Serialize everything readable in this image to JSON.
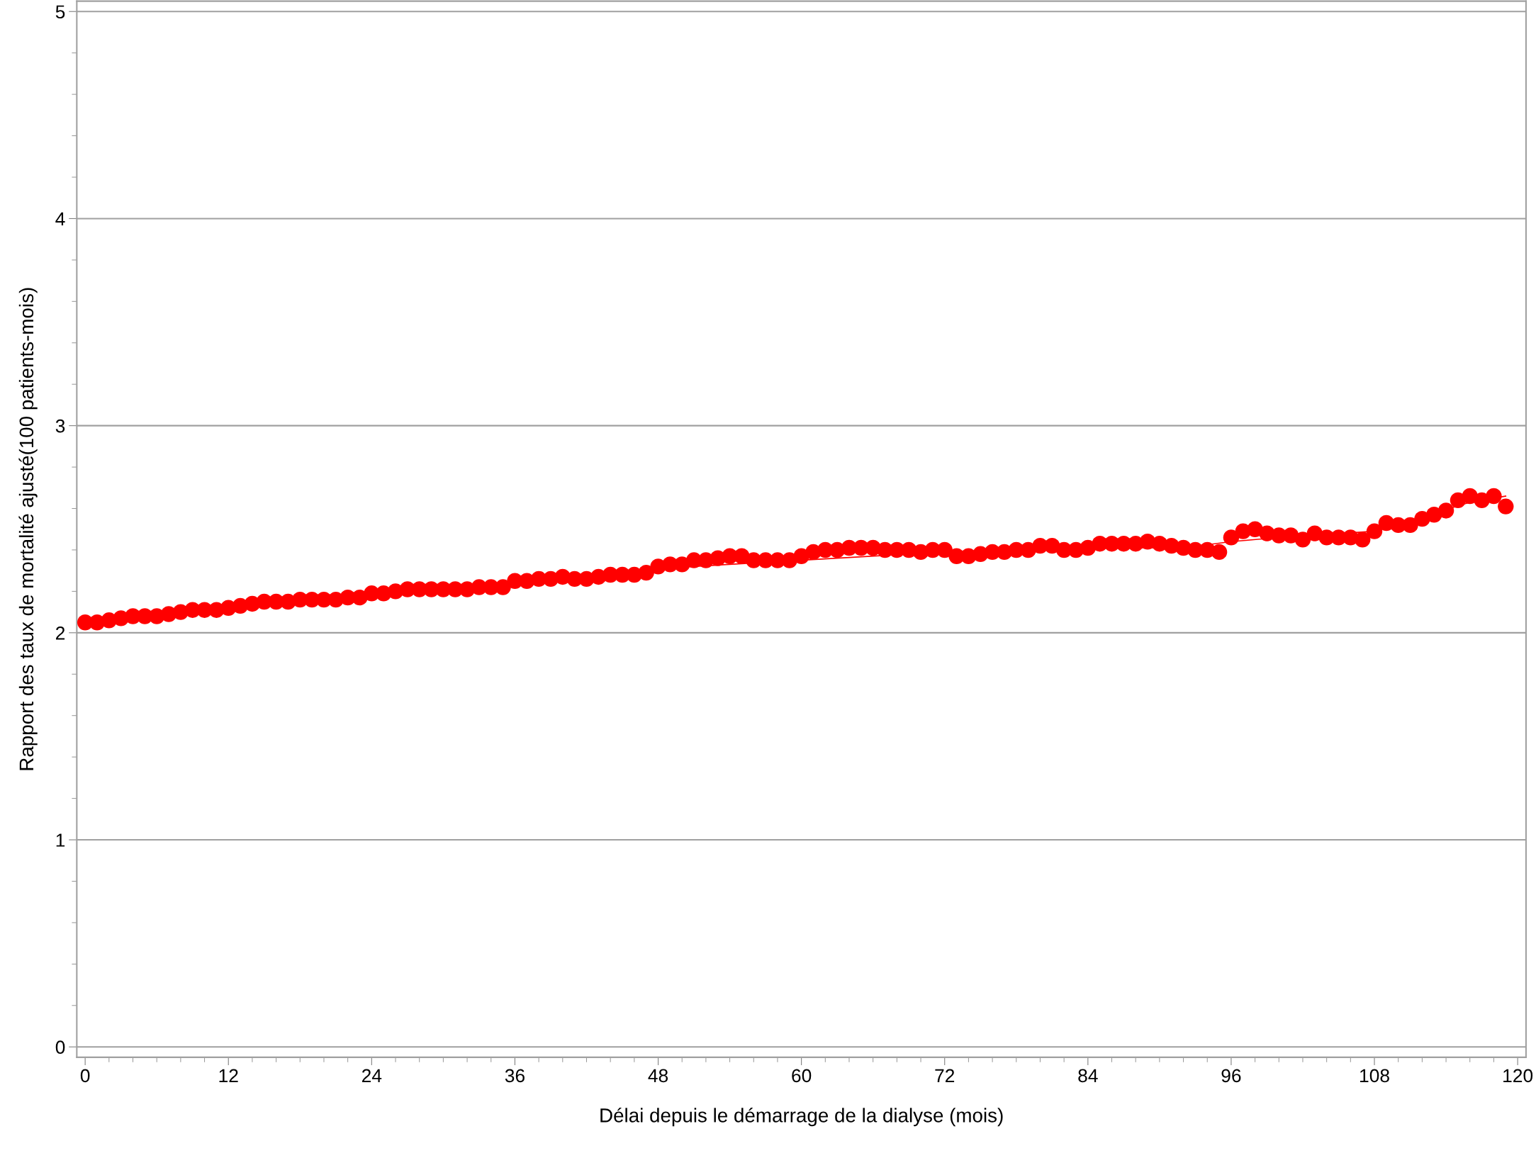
{
  "chart_data": {
    "type": "scatter",
    "xlabel": "Délai depuis le démarrage de la dialyse (mois)",
    "ylabel": "Rapport des taux de mortalité ajusté(100 patients-mois)",
    "x": [
      0,
      1,
      2,
      3,
      4,
      5,
      6,
      7,
      8,
      9,
      10,
      11,
      12,
      13,
      14,
      15,
      16,
      17,
      18,
      19,
      20,
      21,
      22,
      23,
      24,
      25,
      26,
      27,
      28,
      29,
      30,
      31,
      32,
      33,
      34,
      35,
      36,
      37,
      38,
      39,
      40,
      41,
      42,
      43,
      44,
      45,
      46,
      47,
      48,
      49,
      50,
      51,
      52,
      53,
      54,
      55,
      56,
      57,
      58,
      59,
      60,
      61,
      62,
      63,
      64,
      65,
      66,
      67,
      68,
      69,
      70,
      71,
      72,
      73,
      74,
      75,
      76,
      77,
      78,
      79,
      80,
      81,
      82,
      83,
      84,
      85,
      86,
      87,
      88,
      89,
      90,
      91,
      92,
      93,
      94,
      95,
      96,
      97,
      98,
      99,
      100,
      101,
      102,
      103,
      104,
      105,
      106,
      107,
      108,
      109,
      110,
      111,
      112,
      113,
      114,
      115,
      116,
      117,
      118,
      119
    ],
    "series": [
      {
        "color": "#ff0000",
        "marker": "circle",
        "values": [
          2.05,
          2.05,
          2.06,
          2.07,
          2.08,
          2.08,
          2.08,
          2.09,
          2.1,
          2.11,
          2.11,
          2.11,
          2.12,
          2.13,
          2.14,
          2.15,
          2.15,
          2.15,
          2.16,
          2.16,
          2.16,
          2.16,
          2.17,
          2.17,
          2.19,
          2.19,
          2.2,
          2.21,
          2.21,
          2.21,
          2.21,
          2.21,
          2.21,
          2.22,
          2.22,
          2.22,
          2.25,
          2.25,
          2.26,
          2.26,
          2.27,
          2.26,
          2.26,
          2.27,
          2.28,
          2.28,
          2.28,
          2.29,
          2.32,
          2.33,
          2.33,
          2.35,
          2.35,
          2.36,
          2.37,
          2.37,
          2.35,
          2.35,
          2.35,
          2.35,
          2.37,
          2.39,
          2.4,
          2.4,
          2.41,
          2.41,
          2.41,
          2.4,
          2.4,
          2.4,
          2.39,
          2.4,
          2.4,
          2.37,
          2.37,
          2.38,
          2.39,
          2.39,
          2.4,
          2.4,
          2.42,
          2.42,
          2.4,
          2.4,
          2.41,
          2.43,
          2.43,
          2.43,
          2.43,
          2.44,
          2.43,
          2.42,
          2.41,
          2.4,
          2.4,
          2.39,
          2.46,
          2.49,
          2.5,
          2.48,
          2.47,
          2.47,
          2.45,
          2.48,
          2.46,
          2.46,
          2.46,
          2.45,
          2.49,
          2.53,
          2.52,
          2.52,
          2.55,
          2.57,
          2.59,
          2.64,
          2.66,
          2.64,
          2.66,
          2.61
        ]
      },
      {
        "type": "line",
        "color": "#ff0000",
        "marker": "none",
        "x": [
          0,
          24,
          48,
          72,
          84,
          92,
          96,
          100,
          108,
          112,
          116,
          119
        ],
        "values": [
          2.05,
          2.18,
          2.31,
          2.39,
          2.41,
          2.41,
          2.44,
          2.46,
          2.49,
          2.56,
          2.63,
          2.66
        ]
      }
    ],
    "xlim": [
      -0.7,
      120.7
    ],
    "xticks": [
      0,
      12,
      24,
      36,
      48,
      60,
      72,
      84,
      96,
      108,
      120
    ],
    "ylim": [
      -0.05,
      5.05
    ],
    "yticks": [
      0,
      1,
      2,
      3,
      4,
      5
    ],
    "grid": "y",
    "legend": false
  }
}
